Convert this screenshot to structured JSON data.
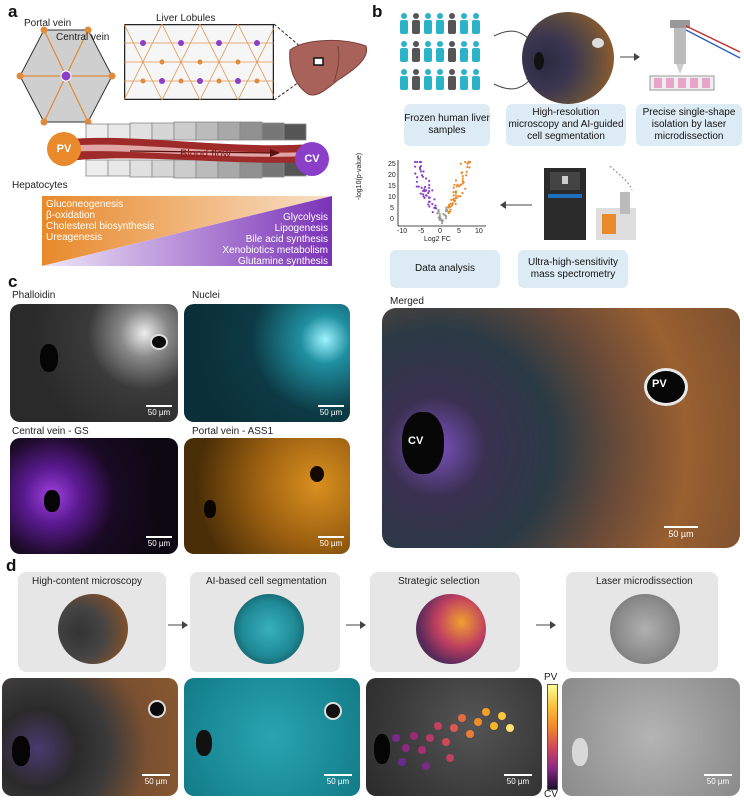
{
  "panels": {
    "a": "a",
    "b": "b",
    "c": "c",
    "d": "d"
  },
  "panel_a": {
    "portal_vein": "Portal vein",
    "central_vein": "Central vein",
    "liver_lobules": "Liver Lobules",
    "pv": "PV",
    "cv": "CV",
    "blood_flow": "Blood flow",
    "hepatocytes": "Hepatocytes",
    "pv_processes": [
      "Gluconeogenesis",
      "β-oxidation",
      "Cholesterol biosynthesis",
      "Ureagenesis"
    ],
    "cv_processes": [
      "Glycolysis",
      "Lipogenesis",
      "Bile acid synthesis",
      "Xenobiotics metabolism",
      "Glutamine synthesis"
    ],
    "colors": {
      "pv": "#e8892b",
      "cv": "#8b3fc9",
      "blood": "#8b1a1a"
    }
  },
  "panel_b": {
    "steps": [
      "Frozen human liver samples",
      "High-resolution microscopy and AI-guided cell segmentation",
      "Precise single-shape isolation by laser microdissection",
      "Ultra-high-sensitivity mass spectrometry",
      "Data analysis"
    ],
    "volcano": {
      "ylabel": "-log10(p-value)",
      "xlabel": "Log2 FC",
      "xticks": [
        "-10",
        "-5",
        "0",
        "5",
        "10"
      ],
      "yticks": [
        "25",
        "20",
        "15",
        "10",
        "5",
        "0"
      ]
    }
  },
  "panel_c": {
    "titles": [
      "Phalloidin",
      "Nuclei",
      "Central vein - GS",
      "Portal vein - ASS1",
      "Merged"
    ],
    "scalebar": "50 µm",
    "pv": "PV",
    "cv": "CV"
  },
  "panel_d": {
    "steps": [
      "High-content microscopy",
      "AI-based cell segmentation",
      "Strategic selection",
      "Laser microdissection"
    ],
    "scalebar": "50 µm",
    "colorbar": {
      "top": "PV",
      "bottom": "CV"
    }
  }
}
